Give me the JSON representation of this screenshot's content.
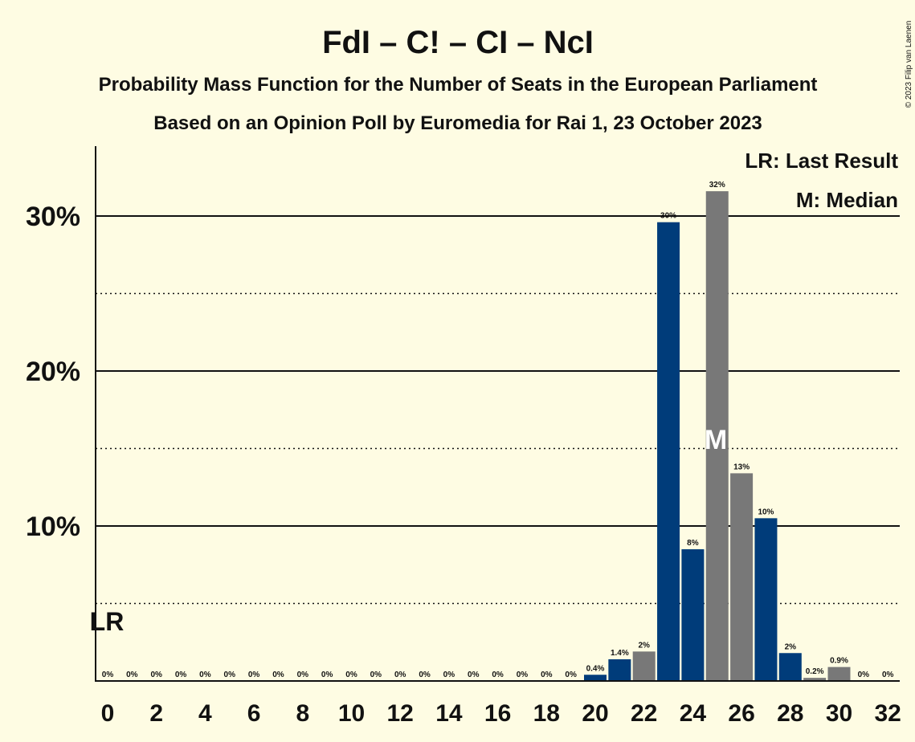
{
  "chart_data": {
    "type": "bar",
    "title": "FdI – C! – CI – NcI",
    "subtitle": "Probability Mass Function for the Number of Seats in the European Parliament",
    "subtitle2": "Based on an Opinion Poll by Euromedia for Rai 1, 23 October 2023",
    "copyright": "© 2023 Filip van Laenen",
    "legend": {
      "lr": "LR: Last Result",
      "median": "M: Median",
      "placement": "top-right"
    },
    "lr_text": "LR",
    "median_text": "M",
    "lr_seat": 0,
    "median_seat": 25,
    "x": [
      0,
      1,
      2,
      3,
      4,
      5,
      6,
      7,
      8,
      9,
      10,
      11,
      12,
      13,
      14,
      15,
      16,
      17,
      18,
      19,
      20,
      21,
      22,
      23,
      24,
      25,
      26,
      27,
      28,
      29,
      30,
      31,
      32
    ],
    "values": [
      0,
      0,
      0,
      0,
      0,
      0,
      0,
      0,
      0,
      0,
      0,
      0,
      0,
      0,
      0,
      0,
      0,
      0,
      0,
      0,
      0.4,
      1.4,
      1.9,
      29.6,
      8.5,
      31.6,
      13.4,
      10.5,
      1.8,
      0.2,
      0.9,
      0,
      0
    ],
    "labels": [
      "0%",
      "0%",
      "0%",
      "0%",
      "0%",
      "0%",
      "0%",
      "0%",
      "0%",
      "0%",
      "0%",
      "0%",
      "0%",
      "0%",
      "0%",
      "0%",
      "0%",
      "0%",
      "0%",
      "0%",
      "0.4%",
      "1.4%",
      "2%",
      "30%",
      "8%",
      "32%",
      "13%",
      "10%",
      "2%",
      "0.2%",
      "0.9%",
      "0%",
      "0%"
    ],
    "x_tick_labels": [
      "0",
      "2",
      "4",
      "6",
      "8",
      "10",
      "12",
      "14",
      "16",
      "18",
      "20",
      "22",
      "24",
      "26",
      "28",
      "30",
      "32"
    ],
    "y_ticks": [
      {
        "value": 10,
        "label": "10%"
      },
      {
        "value": 20,
        "label": "20%"
      },
      {
        "value": 30,
        "label": "30%"
      }
    ],
    "y_minor_ticks": [
      5,
      15,
      25
    ],
    "ylim": [
      0,
      34.5
    ],
    "colors": {
      "blue": "#003c7a",
      "grey": "#787878",
      "background": "#fefce3",
      "axis": "#111111"
    }
  }
}
